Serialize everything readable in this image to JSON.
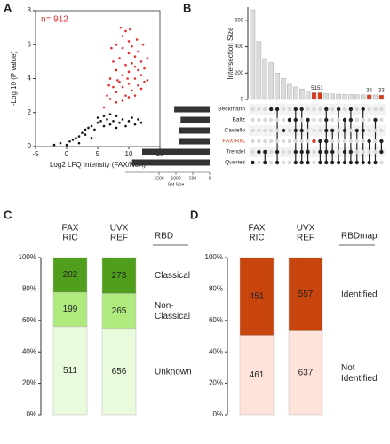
{
  "chart_data": [
    {
      "panel": "A",
      "type": "scatter",
      "title": "n= 912",
      "title_color": "#e03030",
      "xlabel": "Log2 LFQ Intensity (FAX/NoX)",
      "ylabel": "-Log 10 (P value)",
      "xlim": [
        -5,
        15
      ],
      "xticks": [
        -5,
        0,
        5,
        10,
        15
      ],
      "ylim": [
        0,
        8
      ],
      "yticks": [
        0,
        2,
        4,
        6,
        8
      ],
      "series": [
        {
          "color": "#e03030",
          "x": [
            6,
            6.5,
            7,
            7,
            7.5,
            7.5,
            8,
            8,
            8,
            8,
            8.5,
            8.5,
            9,
            9,
            9,
            9,
            9,
            9.5,
            9.5,
            9.5,
            10,
            10,
            10,
            10,
            10,
            10.5,
            10.5,
            10.5,
            11,
            11,
            11,
            11,
            11.5,
            11.5,
            11.5,
            12,
            12,
            12,
            12.5,
            12.5,
            13,
            13,
            8.7,
            7.2,
            6.8,
            10.2,
            11.3,
            9.8,
            8.2,
            12.3
          ],
          "values": [
            2.3,
            3,
            2.8,
            4,
            3.5,
            5,
            2.6,
            3.2,
            4.5,
            6,
            3.8,
            5.2,
            2.7,
            3.5,
            4.2,
            5.8,
            6.5,
            3,
            4.8,
            6.8,
            2.9,
            3.7,
            4.4,
            5.5,
            6.2,
            3.3,
            4.9,
            5.9,
            3,
            4,
            4.7,
            5.3,
            3.6,
            4.5,
            5.6,
            3.4,
            4.2,
            5,
            3.8,
            4.6,
            3.9,
            5.2,
            7,
            5.8,
            3.6,
            6.9,
            6.3,
            4,
            3.9,
            6
          ]
        },
        {
          "color": "#111111",
          "x": [
            -2,
            -1,
            0,
            0.5,
            1,
            1.5,
            2,
            2.5,
            3,
            3,
            3.5,
            4,
            4.5,
            5,
            5,
            5.5,
            6,
            6,
            6.5,
            7,
            7,
            7.5,
            8,
            8,
            8.5,
            9,
            9.5,
            10,
            10.5,
            11,
            11.5,
            12,
            2,
            4
          ],
          "values": [
            0.1,
            0.2,
            0.1,
            0.3,
            0.4,
            0.5,
            0.6,
            0.8,
            0.7,
            1,
            1.1,
            1.2,
            1,
            1.4,
            1.7,
            1.5,
            1.2,
            1.8,
            1.6,
            1.3,
            1.9,
            1.5,
            1.1,
            1.8,
            1.4,
            1.6,
            1.2,
            1.5,
            1.7,
            1.3,
            1.6,
            1.4,
            0.2,
            0.5
          ]
        }
      ]
    },
    {
      "panel": "B",
      "type": "upset",
      "ylabel": "Intersection Size",
      "ylim": [
        0,
        700
      ],
      "yticks": [
        0,
        200,
        400,
        600
      ],
      "values": [
        680,
        440,
        310,
        280,
        200,
        160,
        115,
        95,
        80,
        62,
        51,
        51,
        45,
        42,
        40,
        38,
        37,
        36,
        36,
        35,
        34,
        33
      ],
      "value_labels": [
        null,
        null,
        null,
        null,
        null,
        null,
        null,
        null,
        null,
        null,
        "51",
        "51",
        null,
        null,
        null,
        null,
        null,
        null,
        null,
        "35",
        null,
        "33"
      ],
      "colors": [
        "#dcdcdc",
        "#dcdcdc",
        "#dcdcdc",
        "#dcdcdc",
        "#dcdcdc",
        "#dcdcdc",
        "#dcdcdc",
        "#dcdcdc",
        "#dcdcdc",
        "#dcdcdc",
        "#d9391a",
        "#d9391a",
        "#dcdcdc",
        "#dcdcdc",
        "#dcdcdc",
        "#dcdcdc",
        "#dcdcdc",
        "#dcdcdc",
        "#dcdcdc",
        "#d9391a",
        "#dcdcdc",
        "#d9391a"
      ],
      "sets": [
        [
          5
        ],
        [
          4
        ],
        [
          4,
          5
        ],
        [
          0
        ],
        [
          0,
          4,
          5
        ],
        [
          2
        ],
        [
          1
        ],
        [
          0,
          1,
          2,
          4,
          5
        ],
        [
          0,
          2,
          4,
          5
        ],
        [
          1,
          4,
          5
        ],
        [
          3
        ],
        [
          3,
          4,
          5
        ],
        [
          0,
          1,
          2,
          3,
          4,
          5
        ],
        [
          2,
          4,
          5
        ],
        [
          0,
          5
        ],
        [
          1,
          2,
          4,
          5
        ],
        [
          0,
          1,
          4,
          5
        ],
        [
          2,
          5
        ],
        [
          0,
          2,
          5
        ],
        [
          3,
          5
        ],
        [
          1,
          5
        ],
        [
          3,
          4
        ]
      ],
      "set_names": [
        "Beckmann",
        "Baltz",
        "Castello",
        "FAX-RIC",
        "Trendel",
        "Queriez"
      ],
      "set_colors": [
        "#222222",
        "#222222",
        "#222222",
        "#d9391a",
        "#222222",
        "#222222"
      ],
      "set_sizes": [
        1050,
        860,
        900,
        912,
        2000,
        2300
      ],
      "set_xlabel": "Set Size",
      "set_xlim": [
        0,
        2500
      ],
      "set_xticks": [
        1500,
        1000,
        500,
        0
      ]
    },
    {
      "panel": "C",
      "type": "stacked_percent",
      "categories": [
        "FAX RIC",
        "UVX REF"
      ],
      "legend_title": "RBD",
      "ylim": [
        0,
        100
      ],
      "yticks": [
        {
          "value": 0,
          "label": "0%"
        },
        {
          "value": 20,
          "label": "20%"
        },
        {
          "value": 40,
          "label": "40%"
        },
        {
          "value": 60,
          "label": "60%"
        },
        {
          "value": 80,
          "label": "80%"
        },
        {
          "value": 100,
          "label": "100%"
        }
      ],
      "series": [
        {
          "name": "Unknown",
          "color": "#eafadc",
          "values": [
            511,
            656
          ]
        },
        {
          "name": "Non-Classical",
          "color": "#aeea7e",
          "values": [
            199,
            265
          ]
        },
        {
          "name": "Classical",
          "color": "#4f9e1c",
          "values": [
            202,
            273
          ]
        }
      ]
    },
    {
      "panel": "D",
      "type": "stacked_percent",
      "categories": [
        "FAX RIC",
        "UVX REF"
      ],
      "legend_title": "RBDmap",
      "ylim": [
        0,
        100
      ],
      "yticks": [
        {
          "value": 0,
          "label": "0%"
        },
        {
          "value": 20,
          "label": "20%"
        },
        {
          "value": 40,
          "label": "40%"
        },
        {
          "value": 60,
          "label": "60%"
        },
        {
          "value": 80,
          "label": "80%"
        },
        {
          "value": 100,
          "label": "100%"
        }
      ],
      "series": [
        {
          "name": "Not Identified",
          "color": "#fde3da",
          "values": [
            461,
            637
          ]
        },
        {
          "name": "Identified",
          "color": "#c9450e",
          "values": [
            451,
            557
          ]
        }
      ]
    }
  ]
}
